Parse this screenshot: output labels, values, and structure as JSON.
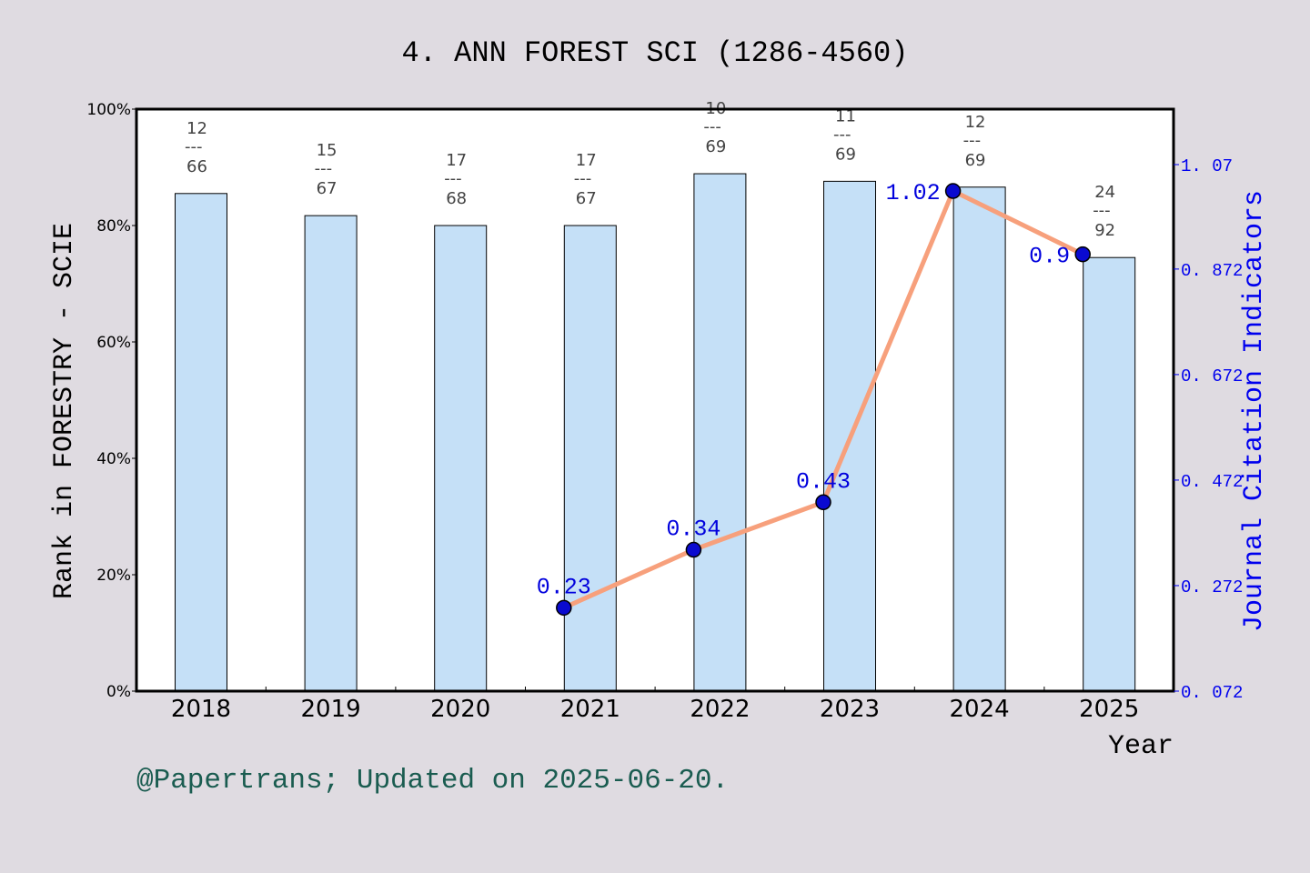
{
  "chart_data": {
    "type": "bar",
    "title": "4. ANN FOREST SCI (1286-4560)",
    "xlabel": "Year",
    "ylabel": "Rank in FORESTRY - SCIE",
    "y2label": "Journal Citation Indicators",
    "categories": [
      "2018",
      "2019",
      "2020",
      "2021",
      "2022",
      "2023",
      "2024",
      "2025"
    ],
    "ylim": [
      0,
      100
    ],
    "yticks": [
      "0%",
      "20%",
      "40%",
      "60%",
      "80%",
      "100%"
    ],
    "y2lim": [
      0.072,
      1.17
    ],
    "y2ticks": [
      "0.072",
      "0.272",
      "0.472",
      "0.672",
      "0.872",
      "1.07"
    ],
    "series": [
      {
        "type": "bar",
        "values": [
          85.5,
          81.7,
          80.0,
          80.0,
          88.9,
          87.6,
          86.6,
          74.5
        ]
      },
      {
        "type": "line",
        "axis": "right",
        "values": [
          null,
          null,
          null,
          0.23,
          0.34,
          0.43,
          1.02,
          0.9
        ],
        "labels": [
          null,
          null,
          null,
          "0.23",
          "0.34",
          "0.43",
          "1.02",
          "0.9"
        ]
      }
    ],
    "rank_labels": [
      {
        "rank": "12",
        "sep": "---",
        "total": "66"
      },
      {
        "rank": "15",
        "sep": "---",
        "total": "67"
      },
      {
        "rank": "17",
        "sep": "---",
        "total": "68"
      },
      {
        "rank": "17",
        "sep": "---",
        "total": "67"
      },
      {
        "rank": "10",
        "sep": "---",
        "total": "69"
      },
      {
        "rank": "11",
        "sep": "---",
        "total": "69"
      },
      {
        "rank": "12",
        "sep": "---",
        "total": "69"
      },
      {
        "rank": "24",
        "sep": "---",
        "total": "92"
      }
    ],
    "colors": {
      "bar": "#c5e0f7",
      "line": "#f7a07c",
      "point": "#0a0ad0",
      "right_axis": "#0000ee",
      "footer": "#1a5c50"
    },
    "grid": false
  },
  "footer": "@Papertrans; Updated on 2025-06-20."
}
